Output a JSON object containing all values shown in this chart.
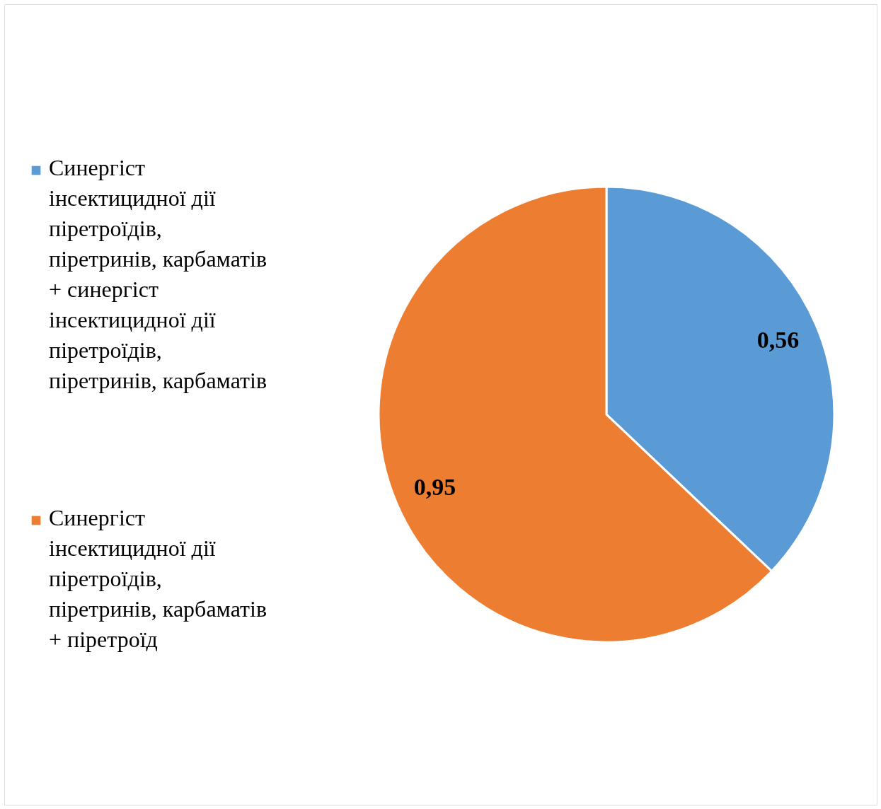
{
  "chart_data": {
    "type": "pie",
    "categories": [
      "Синергіст інсектицидної дії піретроїдів, піретринів, карбаматів + синергіст інсектицидної дії піретроїдів, піретринів, карбаматів",
      "Синергіст інсектицидної дії піретроїдів, піретринів, карбаматів + піретроїд"
    ],
    "values": [
      0.56,
      0.95
    ],
    "colors": [
      "#5b9bd5",
      "#ed7d31"
    ],
    "value_labels": [
      "0,56",
      "0,95"
    ],
    "legend": "left"
  }
}
